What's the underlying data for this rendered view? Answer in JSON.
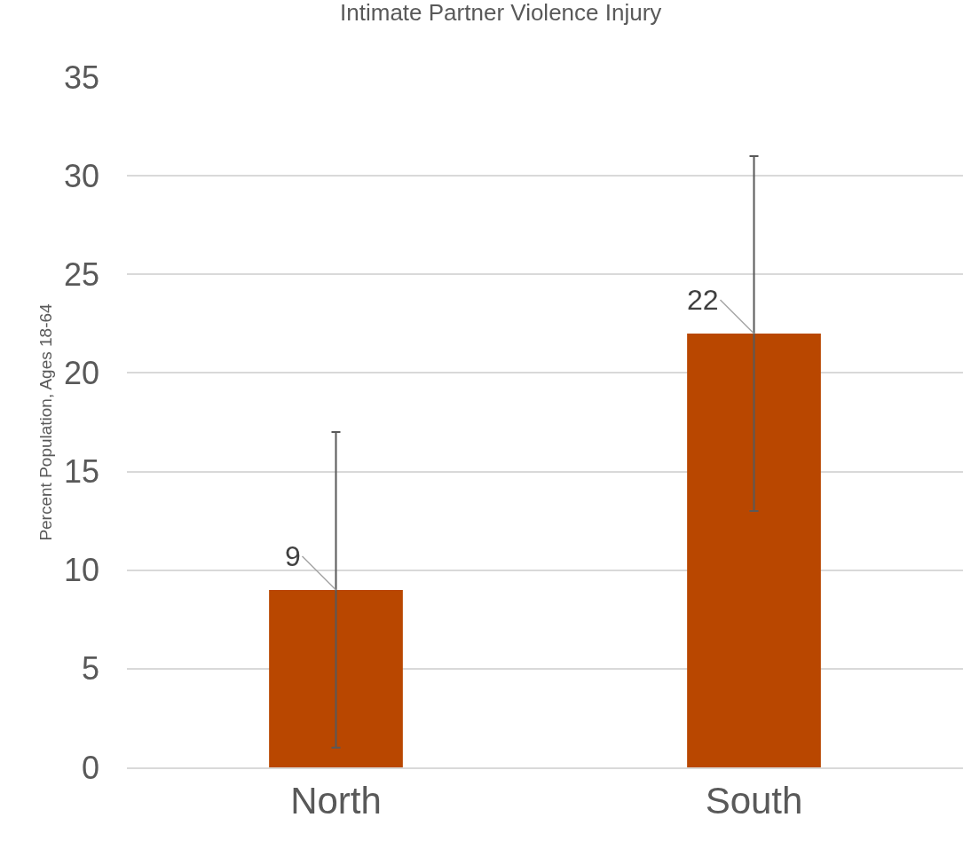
{
  "chart_data": {
    "type": "bar",
    "title": "Intimate Partner Violence Injury",
    "ylabel": "Percent Population, Ages 18-64",
    "categories": [
      "North",
      "South"
    ],
    "values": [
      9,
      22
    ],
    "color": "#b94700",
    "errors": [
      8,
      9
    ],
    "data_labels": true,
    "ylim": [
      0,
      35
    ],
    "yticks": [
      0,
      5,
      10,
      15,
      20,
      25,
      30,
      35
    ],
    "grid": "y"
  }
}
